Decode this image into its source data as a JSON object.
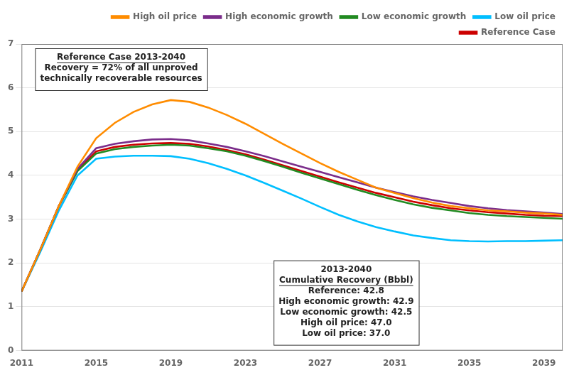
{
  "chart_data": {
    "type": "line",
    "x": [
      2011,
      2012,
      2013,
      2014,
      2015,
      2016,
      2017,
      2018,
      2019,
      2020,
      2021,
      2022,
      2023,
      2024,
      2025,
      2026,
      2027,
      2028,
      2029,
      2030,
      2031,
      2032,
      2033,
      2034,
      2035,
      2036,
      2037,
      2038,
      2039,
      2040
    ],
    "series": [
      {
        "name": "High oil price",
        "color": "#FF8C00",
        "values": [
          1.35,
          2.3,
          3.3,
          4.2,
          4.85,
          5.2,
          5.45,
          5.62,
          5.72,
          5.68,
          5.55,
          5.38,
          5.18,
          4.95,
          4.72,
          4.5,
          4.28,
          4.08,
          3.9,
          3.72,
          3.6,
          3.48,
          3.38,
          3.3,
          3.25,
          3.2,
          3.18,
          3.15,
          3.13,
          3.1
        ]
      },
      {
        "name": "High economic growth",
        "color": "#7B2D8B",
        "values": [
          1.35,
          2.3,
          3.3,
          4.15,
          4.62,
          4.72,
          4.78,
          4.82,
          4.83,
          4.8,
          4.73,
          4.65,
          4.55,
          4.44,
          4.32,
          4.2,
          4.08,
          3.96,
          3.84,
          3.72,
          3.62,
          3.52,
          3.44,
          3.37,
          3.3,
          3.25,
          3.21,
          3.18,
          3.15,
          3.12
        ]
      },
      {
        "name": "Low economic growth",
        "color": "#228B22",
        "values": [
          1.35,
          2.3,
          3.3,
          4.1,
          4.5,
          4.6,
          4.65,
          4.68,
          4.7,
          4.68,
          4.62,
          4.55,
          4.45,
          4.33,
          4.2,
          4.06,
          3.93,
          3.8,
          3.67,
          3.55,
          3.44,
          3.34,
          3.26,
          3.2,
          3.14,
          3.1,
          3.07,
          3.05,
          3.03,
          3.01
        ]
      },
      {
        "name": "Low oil price",
        "color": "#00BFFF",
        "values": [
          1.35,
          2.25,
          3.2,
          4.0,
          4.38,
          4.43,
          4.45,
          4.45,
          4.44,
          4.38,
          4.28,
          4.15,
          4.0,
          3.83,
          3.65,
          3.47,
          3.28,
          3.1,
          2.95,
          2.82,
          2.72,
          2.63,
          2.57,
          2.52,
          2.5,
          2.49,
          2.5,
          2.5,
          2.51,
          2.52
        ]
      },
      {
        "name": "Reference Case",
        "color": "#CC0000",
        "values": [
          1.35,
          2.3,
          3.3,
          4.12,
          4.55,
          4.65,
          4.7,
          4.73,
          4.74,
          4.72,
          4.66,
          4.58,
          4.48,
          4.36,
          4.23,
          4.1,
          3.97,
          3.84,
          3.72,
          3.6,
          3.5,
          3.4,
          3.32,
          3.25,
          3.2,
          3.16,
          3.13,
          3.1,
          3.08,
          3.07
        ]
      }
    ],
    "xlim": [
      2011,
      2040
    ],
    "xticks": [
      2011,
      2015,
      2019,
      2023,
      2027,
      2031,
      2035,
      2039
    ],
    "ylim": [
      0,
      7
    ],
    "yticks": [
      0,
      1,
      2,
      3,
      4,
      5,
      6,
      7
    ],
    "grid": "y",
    "legend": "upper right",
    "annotations": [
      [
        "Reference Case 2013-2040",
        "Recovery = 72% of all unproved",
        "technically recoverable resources"
      ],
      [
        "2013-2040",
        "Cumulative Recovery (Bbbl)",
        "Reference: 42.8",
        "High economic growth: 42.9",
        "Low economic growth: 42.5",
        "High oil price: 47.0",
        "Low oil price: 37.0"
      ]
    ]
  }
}
